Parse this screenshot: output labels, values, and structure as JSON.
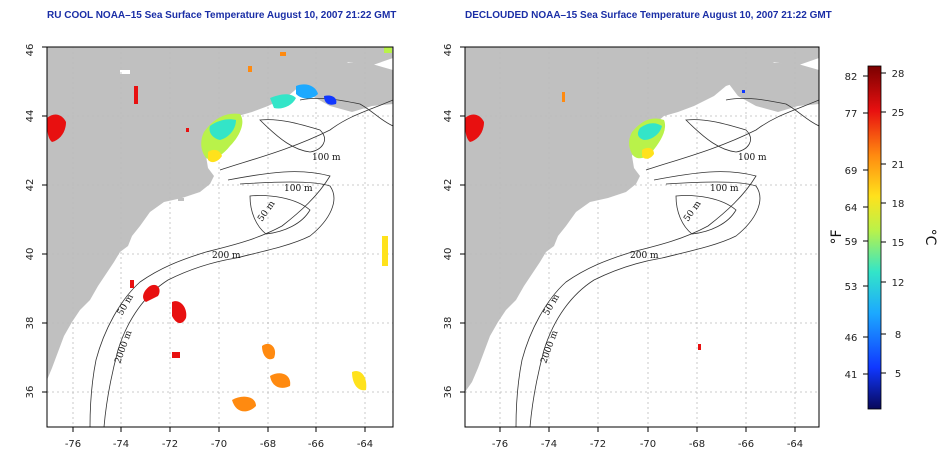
{
  "maps": [
    {
      "title": "RU COOL NOAA–15 Sea Surface Temperature August 10, 2007 21:22 GMT",
      "contours": [
        "100 m",
        "100 m",
        "50 m",
        "200 m",
        "50 m",
        "2000 m"
      ]
    },
    {
      "title": "DECLOUDED NOAA–15 Sea Surface Temperature August 10, 2007 21:22 GMT",
      "contours": [
        "100 m",
        "100 m",
        "50 m",
        "200 m",
        "50 m",
        "2000 m"
      ]
    }
  ],
  "x_ticks": [
    "-76",
    "-74",
    "-72",
    "-70",
    "-68",
    "-66",
    "-64"
  ],
  "y_ticks": [
    "36",
    "38",
    "40",
    "42",
    "44",
    "46"
  ],
  "colorbar": {
    "fahrenheit_ticks": [
      "82",
      "77",
      "69",
      "64",
      "59",
      "53",
      "46",
      "41"
    ],
    "celsius_ticks": [
      "28",
      "25",
      "21",
      "18",
      "15",
      "12",
      "8",
      "5"
    ],
    "fahrenheit_label": "°F",
    "celsius_label": "°C"
  },
  "colors": {
    "title": "#1a2ea6",
    "land": "#c0c0c0",
    "water": "#ffffff",
    "grid": "#bbbbbb",
    "scale_stops": [
      "#08085a",
      "#1037ff",
      "#1ca9ff",
      "#33e5c8",
      "#b9f24a",
      "#ffe21c",
      "#ff8a10",
      "#e81010",
      "#7a0000"
    ]
  }
}
